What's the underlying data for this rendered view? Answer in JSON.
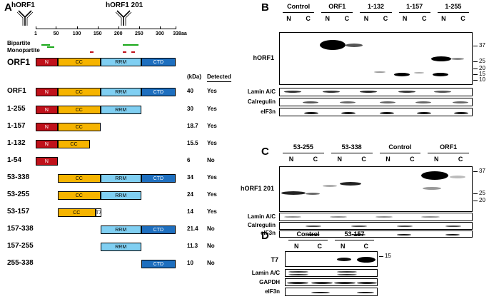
{
  "panels": {
    "a": "A",
    "b": "B",
    "c": "C",
    "d": "D"
  },
  "panelA": {
    "ab1": "hORF1",
    "ab2": "hORF1 201",
    "ticks": [
      "1",
      "50",
      "100",
      "150",
      "200",
      "250",
      "300",
      "338aa"
    ],
    "nls_bipartite": "Bipartite",
    "nls_monopartite": "Monopartite",
    "header_kda": "(kDa)",
    "header_detected": "Detected",
    "top_label": "ORF1",
    "constructs": [
      {
        "name": "ORF1",
        "kda": "40",
        "det": "Yes"
      },
      {
        "name": "1-255",
        "kda": "30",
        "det": "Yes"
      },
      {
        "name": "1-157",
        "kda": "18.7",
        "det": "Yes"
      },
      {
        "name": "1-132",
        "kda": "15.5",
        "det": "Yes"
      },
      {
        "name": "1-54",
        "kda": "6",
        "det": "No"
      },
      {
        "name": "53-338",
        "kda": "34",
        "det": "Yes"
      },
      {
        "name": "53-255",
        "kda": "24",
        "det": "Yes"
      },
      {
        "name": "53-157",
        "kda": "14",
        "det": "Yes"
      },
      {
        "name": "157-338",
        "kda": "21.4",
        "det": "No"
      },
      {
        "name": "157-255",
        "kda": "11.3",
        "det": "No"
      },
      {
        "name": "255-338",
        "kda": "10",
        "det": "No"
      }
    ],
    "domains": {
      "N": "N",
      "CC": "CC",
      "RRM": "RRM",
      "CTD": "CTD",
      "T7": "T7"
    }
  },
  "panelB": {
    "groups": [
      "Control",
      "ORF1",
      "1-132",
      "1-157",
      "1-255"
    ],
    "lanes": [
      "N",
      "C"
    ],
    "main_label": "hORF1",
    "mw": [
      "37",
      "25",
      "20",
      "15",
      "10"
    ],
    "rows": [
      "Lamin A/C",
      "Calregulin",
      "eIF3n"
    ]
  },
  "panelC": {
    "groups": [
      "53-255",
      "53-338",
      "Control",
      "ORF1"
    ],
    "lanes": [
      "N",
      "C"
    ],
    "main_label": "hORF1 201",
    "mw": [
      "37",
      "25",
      "20"
    ],
    "rows": [
      "Lamin A/C",
      "Calregulin",
      "eIF3n"
    ]
  },
  "panelD": {
    "groups": [
      "Control",
      "53-157"
    ],
    "lanes": [
      "N",
      "C"
    ],
    "main_label": "T7",
    "mw": [
      "15"
    ],
    "rows": [
      "Lamin A/C",
      "GAPDH",
      "eIF3n"
    ]
  },
  "colors": {
    "N": "#c0111a",
    "CC": "#f6b400",
    "RRM": "#80cff2",
    "CTD": "#1e6fbf",
    "nls_bipartite": "#1aa81a",
    "nls_monopartite": "#c0111a"
  }
}
